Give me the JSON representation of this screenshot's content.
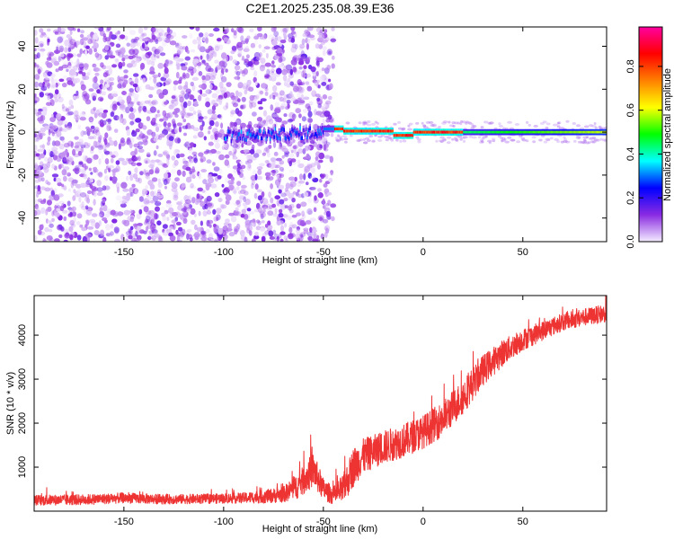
{
  "title": "C2E1.2025.235.08.39.E36",
  "chart_data": [
    {
      "type": "heatmap",
      "xlabel": "Height of straight line (km)",
      "ylabel": "Frequency (Hz)",
      "xlim": [
        -195,
        92
      ],
      "ylim": [
        -51,
        49
      ],
      "x_ticks": [
        -150,
        -100,
        -50,
        0,
        50
      ],
      "x_tick_labels": [
        "-150",
        "-100",
        "-50",
        "0",
        "50"
      ],
      "y_ticks": [
        -40,
        -20,
        0,
        20,
        40
      ],
      "y_tick_labels": [
        "-40",
        "-20",
        "0",
        "20",
        "40"
      ],
      "grid": false,
      "colorbar": {
        "label": "Normalized spectral amplitude",
        "range": [
          0,
          0.98
        ],
        "ticks": [
          0,
          0.2,
          0.4,
          0.6,
          0.8
        ],
        "tick_labels": [
          "0.0",
          "0.2",
          "0.4",
          "0.6",
          "0.8"
        ],
        "colormap": [
          "#f4ecff",
          "#8a2be2",
          "#0000ff",
          "#00ffff",
          "#00ff00",
          "#ffff00",
          "#ff8000",
          "#ff0000",
          "#ff00a0"
        ]
      },
      "features": [
        {
          "name": "noise scatter",
          "x_range": [
            -195,
            -45
          ],
          "y_range": [
            -51,
            49
          ],
          "amplitude": "0.0-0.15"
        },
        {
          "name": "central band",
          "x_range": [
            -100,
            92
          ],
          "y_center": 0,
          "amplitude_start": 0.2,
          "amplitude_end": 0.6
        },
        {
          "name": "peak segment",
          "x_range": [
            -45,
            20
          ],
          "y_center": 0.5,
          "amplitude": 0.85
        }
      ]
    },
    {
      "type": "line",
      "xlabel": "Height of straight line (km)",
      "ylabel": "SNR (10 * v/v)",
      "xlim": [
        -195,
        92
      ],
      "ylim": [
        0,
        4900
      ],
      "x_ticks": [
        -150,
        -100,
        -50,
        0,
        50
      ],
      "x_tick_labels": [
        "-150",
        "-100",
        "-50",
        "0",
        "50"
      ],
      "y_ticks": [
        1000,
        2000,
        3000,
        4000
      ],
      "y_tick_labels": [
        "1000",
        "2000",
        "3000",
        "4000"
      ],
      "grid": false,
      "color": "#ee3333",
      "series": [
        {
          "name": "SNR",
          "x": [
            -195,
            -170,
            -150,
            -130,
            -110,
            -90,
            -80,
            -70,
            -62,
            -55,
            -50,
            -45,
            -40,
            -35,
            -30,
            -25,
            -20,
            -10,
            0,
            10,
            20,
            30,
            40,
            50,
            60,
            70,
            80,
            92
          ],
          "y": [
            250,
            260,
            300,
            270,
            280,
            300,
            330,
            380,
            600,
            950,
            500,
            350,
            500,
            1000,
            1250,
            1350,
            1450,
            1600,
            1800,
            2100,
            2600,
            3200,
            3600,
            3900,
            4100,
            4300,
            4400,
            4500
          ],
          "noise": [
            120,
            120,
            120,
            110,
            110,
            120,
            150,
            180,
            300,
            400,
            250,
            200,
            350,
            450,
            400,
            380,
            380,
            380,
            380,
            400,
            400,
            350,
            300,
            250,
            220,
            200,
            200,
            200
          ]
        }
      ]
    }
  ]
}
